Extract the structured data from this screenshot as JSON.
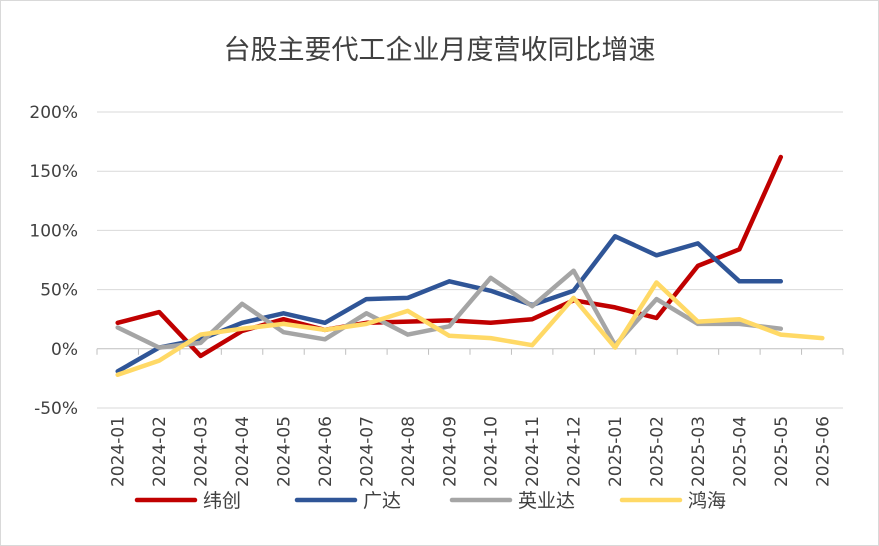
{
  "chart_data": {
    "type": "line",
    "title": "台股主要代工企业月度营收同比增速",
    "xlabel": "",
    "ylabel": "",
    "ylim": [
      -50,
      200
    ],
    "y_ticks": [
      -50,
      0,
      50,
      100,
      150,
      200
    ],
    "y_tick_labels": [
      "-50%",
      "0%",
      "50%",
      "100%",
      "150%",
      "200%"
    ],
    "categories": [
      "2024-01",
      "2024-02",
      "2024-03",
      "2024-04",
      "2024-05",
      "2024-06",
      "2024-07",
      "2024-08",
      "2024-09",
      "2024-10",
      "2024-11",
      "2024-12",
      "2025-01",
      "2025-02",
      "2025-03",
      "2025-04",
      "2025-05",
      "2025-06"
    ],
    "grid": "horizontal",
    "legend_position": "bottom",
    "series": [
      {
        "name": "纬创",
        "color": "#c00000",
        "values": [
          22,
          31,
          -6,
          15,
          25,
          16,
          22,
          23,
          24,
          22,
          25,
          41,
          35,
          26,
          70,
          84,
          162,
          null
        ]
      },
      {
        "name": "广达",
        "color": "#2f5597",
        "values": [
          -19,
          1,
          8,
          22,
          30,
          22,
          42,
          43,
          57,
          49,
          37,
          49,
          95,
          79,
          89,
          57,
          57,
          null
        ]
      },
      {
        "name": "英业达",
        "color": "#a5a5a5",
        "values": [
          18,
          1,
          5,
          38,
          14,
          8,
          30,
          12,
          19,
          60,
          36,
          66,
          3,
          42,
          21,
          21,
          17,
          null
        ]
      },
      {
        "name": "鸿海",
        "color": "#ffd966",
        "values": [
          -22,
          -10,
          12,
          17,
          21,
          16,
          21,
          32,
          11,
          9,
          3,
          43,
          1,
          56,
          23,
          25,
          12,
          9
        ]
      }
    ]
  }
}
